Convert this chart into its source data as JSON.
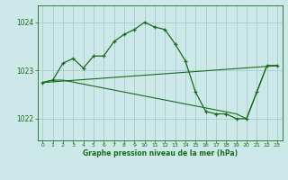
{
  "title": "Graphe pression niveau de la mer (hPa)",
  "background_color": "#cce8e8",
  "grid_color": "#aacccc",
  "line_color": "#1a6b1a",
  "marker_color": "#1a6b1a",
  "xlim": [
    -0.5,
    23.5
  ],
  "ylim": [
    1021.55,
    1024.35
  ],
  "yticks": [
    1022,
    1023,
    1024
  ],
  "xticks": [
    0,
    1,
    2,
    3,
    4,
    5,
    6,
    7,
    8,
    9,
    10,
    11,
    12,
    13,
    14,
    15,
    16,
    17,
    18,
    19,
    20,
    21,
    22,
    23
  ],
  "series1_x": [
    0,
    1,
    2,
    3,
    4,
    5,
    6,
    7,
    8,
    9,
    10,
    11,
    12,
    13,
    14,
    15,
    16,
    17,
    18,
    19,
    20,
    21,
    22,
    23
  ],
  "series1_y": [
    1022.75,
    1022.8,
    1023.15,
    1023.25,
    1023.05,
    1023.3,
    1023.3,
    1023.6,
    1023.75,
    1023.85,
    1024.0,
    1023.9,
    1023.85,
    1023.55,
    1023.2,
    1022.55,
    1022.15,
    1022.1,
    1022.1,
    1022.0,
    1022.0,
    1022.55,
    1023.1,
    1023.1
  ],
  "series2_x": [
    0,
    1,
    2,
    19,
    20,
    21,
    22,
    23
  ],
  "series2_y": [
    1022.75,
    1022.8,
    1022.8,
    1022.1,
    1022.0,
    1022.55,
    1023.1,
    1023.1
  ],
  "series3_x": [
    0,
    23
  ],
  "series3_y": [
    1022.75,
    1023.1
  ]
}
